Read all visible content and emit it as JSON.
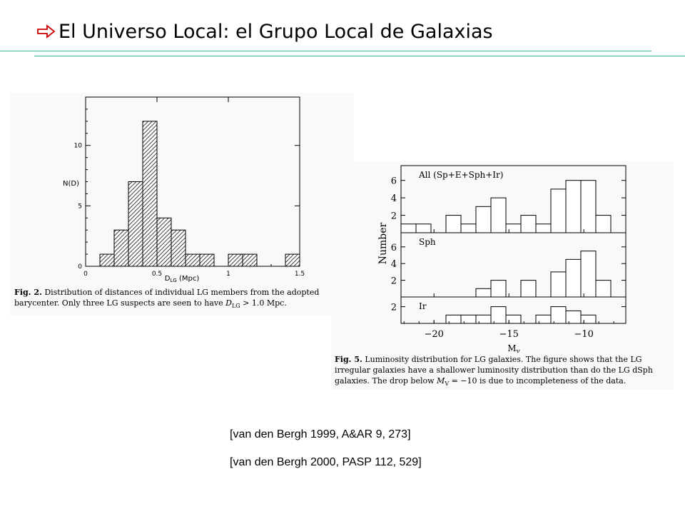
{
  "slide": {
    "title": "El Universo Local: el Grupo Local de Galaxias",
    "title_icon": "arrow-right-outline-icon",
    "accent_color": "#41b39a"
  },
  "figure1": {
    "caption_label": "Fig. 2.",
    "caption_text": "Distribution of distances of individual LG members from the adopted barycenter. Only three LG suspects are seen to have",
    "caption_tail": "> 1.0 Mpc.",
    "caption_var": "D",
    "caption_sub": "LG"
  },
  "figure2": {
    "caption_label": "Fig. 5.",
    "caption_text": "Luminosity distribution for LG galaxies. The figure shows that the LG irregular galaxies have a shallower luminosity distribution than do the LG dSph galaxies. The drop below",
    "caption_var": "M",
    "caption_sub": "V",
    "caption_tail": "= −10 is due to incompleteness of the data."
  },
  "references": [
    "[van den Bergh 1999, A&AR 9, 273]",
    "[van den Bergh 2000, PASP 112, 529]"
  ],
  "chart_data": [
    {
      "type": "bar",
      "xlabel": "D",
      "xlabel_sub": "LG",
      "xlabel_unit": "(Mpc)",
      "ylabel": "N(D)",
      "xlim": [
        0,
        1.5
      ],
      "ylim": [
        0,
        14
      ],
      "xticks": [
        "0",
        "0.5",
        "1",
        "1.5"
      ],
      "yticks": [
        "0",
        "5",
        "10"
      ],
      "bin_width": 0.1,
      "bins": [
        {
          "x0": 0.1,
          "value": 1
        },
        {
          "x0": 0.2,
          "value": 3
        },
        {
          "x0": 0.3,
          "value": 7
        },
        {
          "x0": 0.4,
          "value": 12
        },
        {
          "x0": 0.5,
          "value": 4
        },
        {
          "x0": 0.6,
          "value": 3
        },
        {
          "x0": 0.7,
          "value": 1
        },
        {
          "x0": 0.8,
          "value": 1
        },
        {
          "x0": 1.0,
          "value": 1
        },
        {
          "x0": 1.1,
          "value": 1
        },
        {
          "x0": 1.4,
          "value": 1
        }
      ]
    },
    {
      "type": "bar",
      "ylabel": "Number",
      "xlabel": "M",
      "xlabel_sub": "v",
      "xlim": [
        -22.2,
        -7.2
      ],
      "xticks": [
        -20,
        -15,
        -10
      ],
      "xtick_labels": [
        "−20",
        "−15",
        "−10"
      ],
      "bin_width": 1,
      "panels": [
        {
          "label": "All (Sp+E+Sph+Ir)",
          "ylim": [
            0,
            7
          ],
          "yticks": [
            "2",
            "4",
            "6"
          ],
          "bins": [
            {
              "x0": -22.2,
              "value": 1
            },
            {
              "x0": -21.2,
              "value": 1
            },
            {
              "x0": -19.2,
              "value": 2
            },
            {
              "x0": -18.2,
              "value": 1
            },
            {
              "x0": -17.2,
              "value": 3
            },
            {
              "x0": -16.2,
              "value": 4
            },
            {
              "x0": -15.2,
              "value": 1
            },
            {
              "x0": -14.2,
              "value": 2
            },
            {
              "x0": -13.2,
              "value": 1
            },
            {
              "x0": -12.2,
              "value": 5
            },
            {
              "x0": -11.2,
              "value": 6
            },
            {
              "x0": -10.2,
              "value": 6
            },
            {
              "x0": -9.2,
              "value": 2
            }
          ]
        },
        {
          "label": "Sph",
          "ylim": [
            0,
            7
          ],
          "yticks": [
            "2",
            "4",
            "6"
          ],
          "bins": [
            {
              "x0": -17.2,
              "value": 1
            },
            {
              "x0": -16.2,
              "value": 2
            },
            {
              "x0": -14.2,
              "value": 2
            },
            {
              "x0": -12.2,
              "value": 3
            },
            {
              "x0": -11.2,
              "value": 4.5
            },
            {
              "x0": -10.2,
              "value": 5.5
            },
            {
              "x0": -9.2,
              "value": 2
            }
          ]
        },
        {
          "label": "Ir",
          "ylim": [
            0,
            3
          ],
          "yticks": [
            "2"
          ],
          "bins": [
            {
              "x0": -19.2,
              "value": 1
            },
            {
              "x0": -18.2,
              "value": 1
            },
            {
              "x0": -17.2,
              "value": 1
            },
            {
              "x0": -16.2,
              "value": 2
            },
            {
              "x0": -15.2,
              "value": 1
            },
            {
              "x0": -13.2,
              "value": 1
            },
            {
              "x0": -12.2,
              "value": 2
            },
            {
              "x0": -11.2,
              "value": 1.5
            },
            {
              "x0": -10.2,
              "value": 1
            }
          ]
        }
      ]
    }
  ]
}
